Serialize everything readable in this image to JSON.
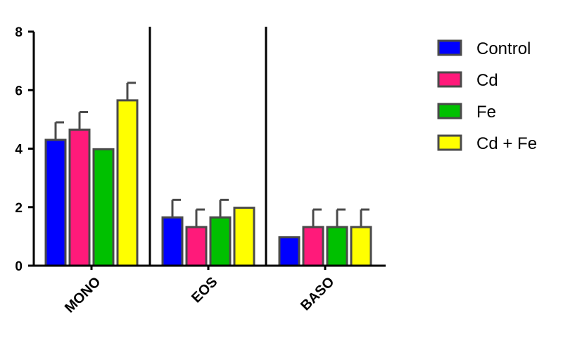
{
  "chart_data": {
    "type": "bar",
    "title": "",
    "xlabel": "",
    "ylabel": "",
    "ylim": [
      0,
      8
    ],
    "yticks": [
      0,
      2,
      4,
      6,
      8
    ],
    "categories": [
      "MONO",
      "EOS",
      "BASO"
    ],
    "series": [
      {
        "name": "Control",
        "color": "#0000ff",
        "values": [
          4.3,
          1.65,
          0.97
        ],
        "errors": [
          0.6,
          0.6,
          0
        ]
      },
      {
        "name": "Cd",
        "color": "#ff1a7a",
        "values": [
          4.65,
          1.32,
          1.32
        ],
        "errors": [
          0.6,
          0.6,
          0.6
        ]
      },
      {
        "name": "Fe",
        "color": "#00c000",
        "values": [
          3.98,
          1.65,
          1.32
        ],
        "errors": [
          0,
          0.6,
          0.6
        ]
      },
      {
        "name": "Cd + Fe",
        "color": "#ffff00",
        "values": [
          5.65,
          1.98,
          1.32
        ],
        "errors": [
          0.6,
          0,
          0.6
        ]
      }
    ],
    "legend": "right",
    "grid": false,
    "bar_outline_color": "#4a4a4a",
    "group_separators": true
  }
}
